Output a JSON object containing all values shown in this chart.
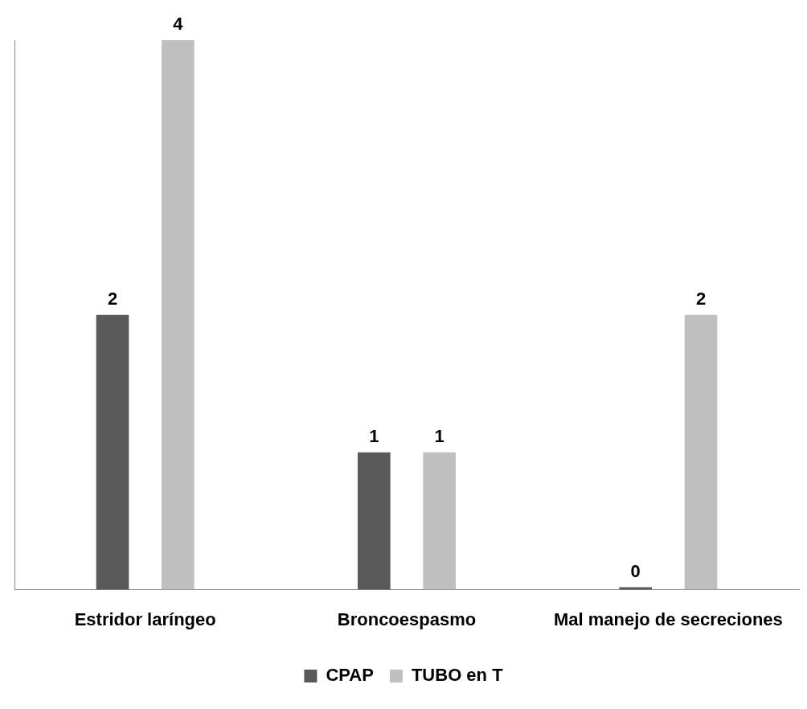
{
  "chart_data": {
    "type": "bar",
    "categories": [
      "Estridor laríngeo",
      "Broncoespasmo",
      "Mal manejo de secreciones"
    ],
    "series": [
      {
        "name": "CPAP",
        "color": "#595959",
        "values": [
          2,
          1,
          0
        ]
      },
      {
        "name": "TUBO en T",
        "color": "#bfbfbf",
        "values": [
          4,
          1,
          2
        ]
      }
    ],
    "data_labels": true,
    "legend": "bottom",
    "grid": false
  }
}
